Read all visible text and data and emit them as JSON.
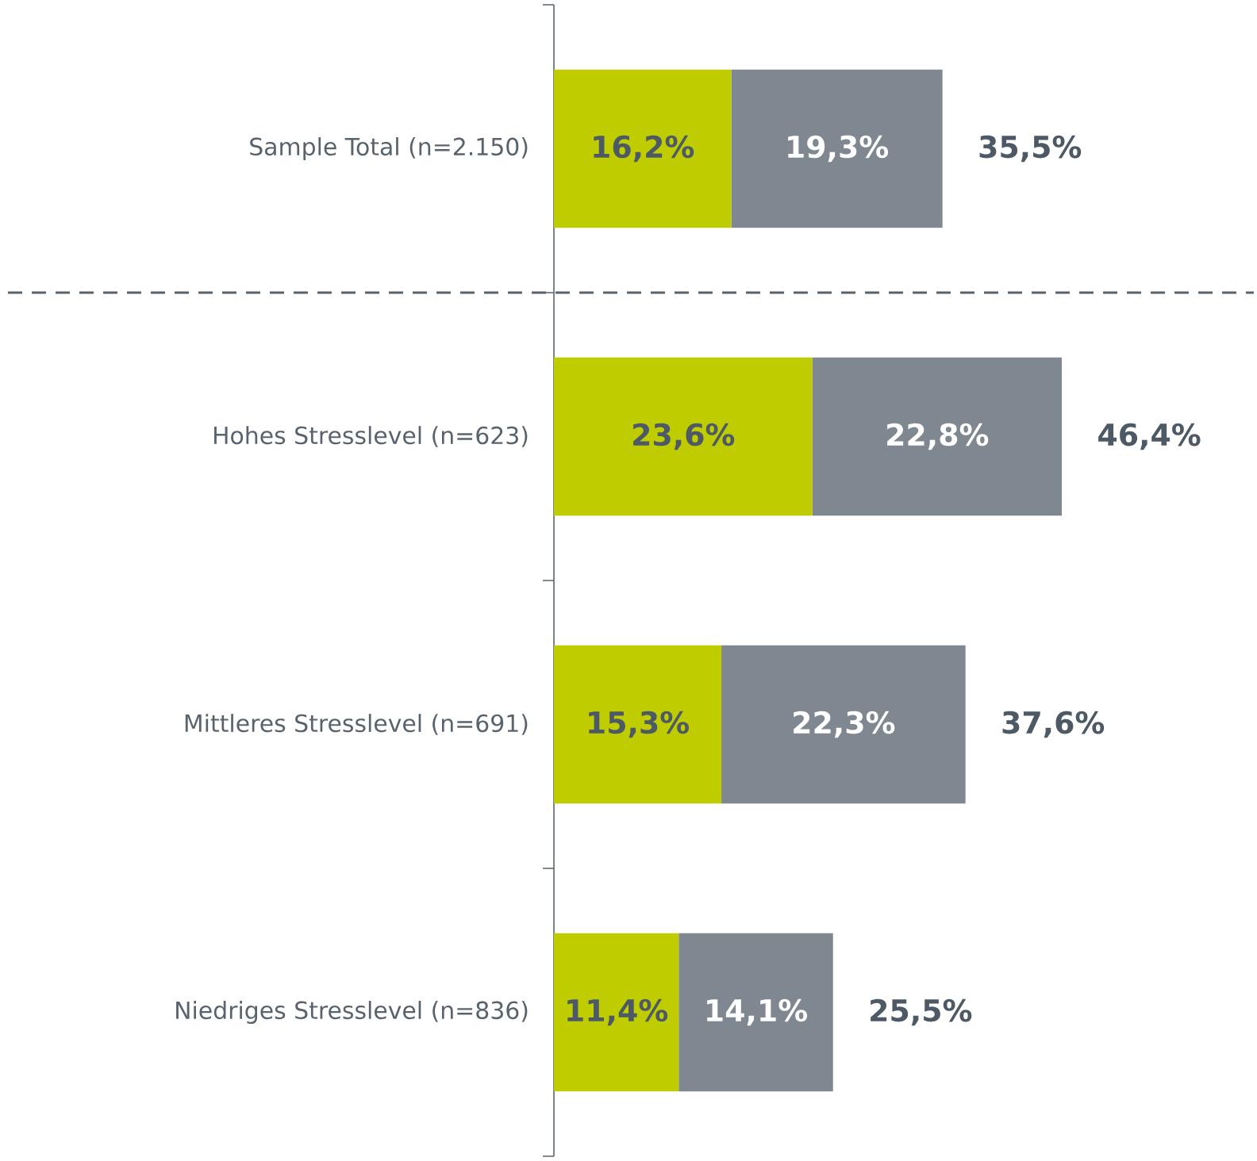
{
  "chart_data": {
    "type": "bar",
    "orientation": "horizontal",
    "stacked": true,
    "categories": [
      "Sample Total (n=2.150)",
      "Hohes Stresslevel (n=623)",
      "Mittleres Stresslevel (n=691)",
      "Niedriges Stresslevel (n=836)"
    ],
    "series": [
      {
        "color": "#bfcd00",
        "values": [
          16.2,
          23.6,
          15.3,
          11.4
        ],
        "value_labels": [
          "16,2%",
          "23,6%",
          "15,3%",
          "11,4%"
        ]
      },
      {
        "color": "#7f8790",
        "values": [
          19.3,
          22.8,
          22.3,
          14.1
        ],
        "value_labels": [
          "19,3%",
          "22,8%",
          "22,3%",
          "14,1%"
        ]
      }
    ],
    "totals": [
      "35,5%",
      "46,4%",
      "37,6%",
      "25,5%"
    ],
    "tick_labels": "y"
  }
}
